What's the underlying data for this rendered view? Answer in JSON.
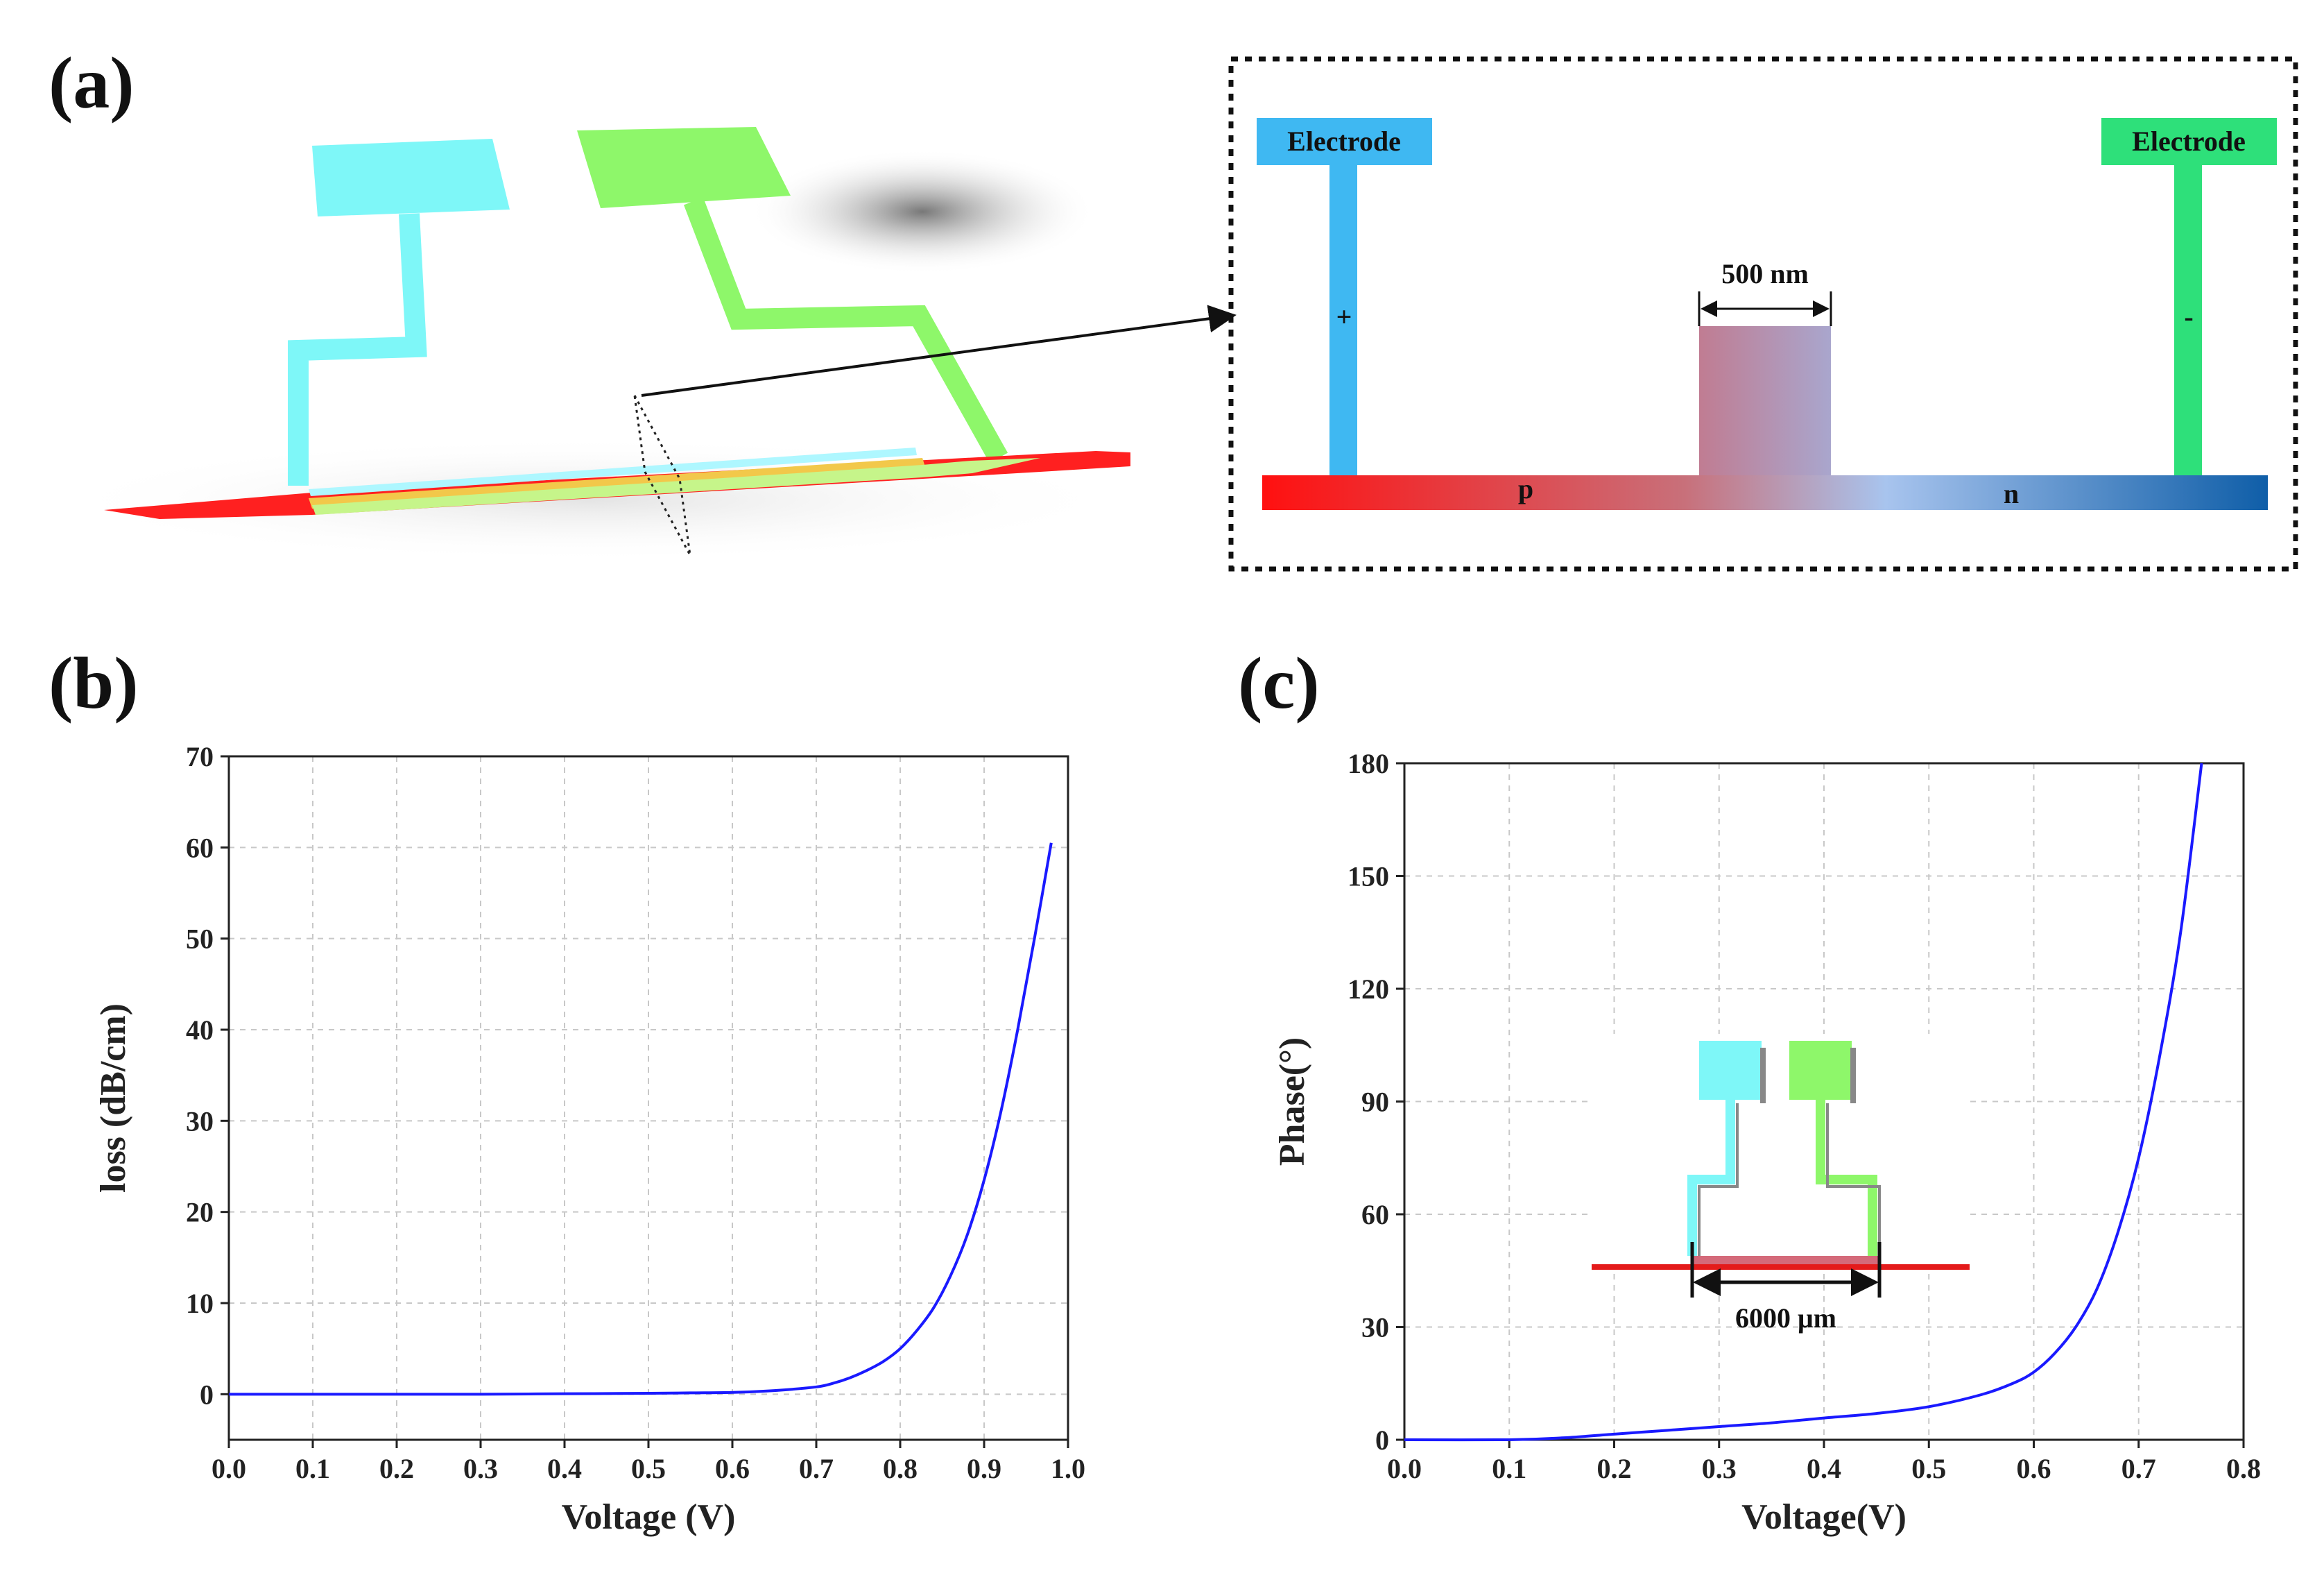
{
  "panels": {
    "a": {
      "label": "(a)",
      "electrode_left": "Electrode",
      "electrode_right": "Electrode",
      "sign_left": "+",
      "sign_right": "-",
      "width_label": "500 nm",
      "region_p": "p",
      "region_n": "n"
    },
    "b": {
      "label": "(b)"
    },
    "c": {
      "label": "(c)",
      "inset_length_label": "6000 μm"
    }
  },
  "colors": {
    "curve": "#1a1aff",
    "electrode_left": "#3fb8f2",
    "electrode_right": "#2ee07a",
    "p_region": "#e41b1b",
    "n_region": "#1565b0"
  },
  "chart_data": [
    {
      "type": "line",
      "panel": "b",
      "xlabel": "Voltage (V)",
      "ylabel": "loss (dB/cm)",
      "xlim": [
        0.0,
        1.0
      ],
      "ylim": [
        -5,
        70
      ],
      "xticks": [
        "0.0",
        "0.1",
        "0.2",
        "0.3",
        "0.4",
        "0.5",
        "0.6",
        "0.7",
        "0.8",
        "0.9",
        "1.0"
      ],
      "yticks": [
        "0",
        "10",
        "20",
        "30",
        "40",
        "50",
        "60",
        "70"
      ],
      "grid": true,
      "x": [
        0.0,
        0.1,
        0.2,
        0.3,
        0.4,
        0.5,
        0.55,
        0.6,
        0.65,
        0.7,
        0.72,
        0.74,
        0.76,
        0.78,
        0.8,
        0.82,
        0.84,
        0.86,
        0.88,
        0.9,
        0.92,
        0.94,
        0.96,
        0.98
      ],
      "y": [
        0.0,
        0.0,
        0.0,
        0.0,
        0.05,
        0.1,
        0.15,
        0.2,
        0.4,
        0.8,
        1.2,
        1.8,
        2.6,
        3.6,
        5.0,
        7.0,
        9.5,
        13.0,
        17.5,
        23.5,
        31.0,
        40.0,
        50.0,
        60.5
      ]
    },
    {
      "type": "line",
      "panel": "c",
      "xlabel": "Voltage(V)",
      "ylabel": "Phase(°)",
      "xlim": [
        0.0,
        0.8
      ],
      "ylim": [
        0,
        180
      ],
      "xticks": [
        "0.0",
        "0.1",
        "0.2",
        "0.3",
        "0.4",
        "0.5",
        "0.6",
        "0.7",
        "0.8"
      ],
      "yticks": [
        "0",
        "30",
        "60",
        "90",
        "120",
        "150",
        "180"
      ],
      "grid": true,
      "x": [
        0.0,
        0.1,
        0.15,
        0.2,
        0.25,
        0.3,
        0.35,
        0.4,
        0.45,
        0.5,
        0.55,
        0.58,
        0.6,
        0.62,
        0.64,
        0.66,
        0.68,
        0.7,
        0.72,
        0.74,
        0.76
      ],
      "y": [
        0.0,
        0.0,
        0.5,
        1.5,
        2.5,
        3.5,
        4.5,
        5.8,
        7.0,
        8.8,
        12.0,
        15.0,
        18.0,
        23.0,
        30.0,
        40.0,
        55.0,
        75.0,
        102.0,
        135.0,
        180.0
      ]
    }
  ]
}
